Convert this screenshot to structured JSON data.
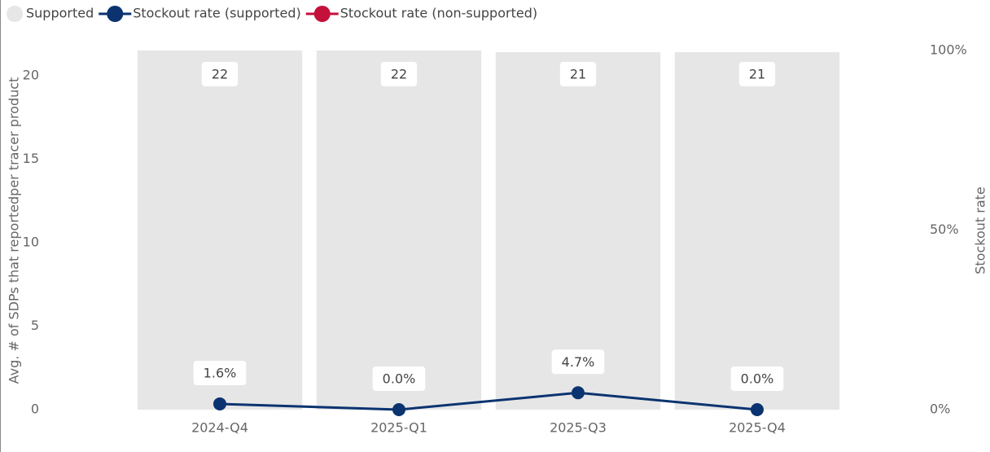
{
  "chart_data": {
    "type": "combo",
    "categories": [
      "2024-Q4",
      "2025-Q1",
      "2025-Q3",
      "2025-Q4"
    ],
    "y_label": "Avg. # of SDPs that reportedper tracer product",
    "y2_label": "Stockout rate",
    "ylim": [
      0,
      21.5
    ],
    "yticks": [
      0,
      5,
      10,
      15,
      20
    ],
    "y2lim": [
      0,
      100
    ],
    "y2ticks": [
      {
        "value": 0,
        "label": "0%"
      },
      {
        "value": 50,
        "label": "50%"
      },
      {
        "value": 100,
        "label": "100%"
      }
    ],
    "series": [
      {
        "name": "Supported",
        "type": "bar",
        "color": "#e6e6e6",
        "values": [
          21.5,
          21.5,
          21.4,
          21.4
        ],
        "value_labels": [
          "22",
          "22",
          "21",
          "21"
        ]
      },
      {
        "name": "Stockout rate (supported)",
        "type": "line",
        "axis": "y2",
        "color": "#0b3370",
        "values": [
          1.6,
          0.0,
          4.7,
          0.0
        ],
        "value_labels": [
          "1.6%",
          "0.0%",
          "4.7%",
          "0.0%"
        ]
      },
      {
        "name": "Stockout rate (non-supported)",
        "type": "line",
        "axis": "y2",
        "color": "#c4113a",
        "values": [
          null,
          null,
          null,
          null
        ]
      }
    ]
  }
}
